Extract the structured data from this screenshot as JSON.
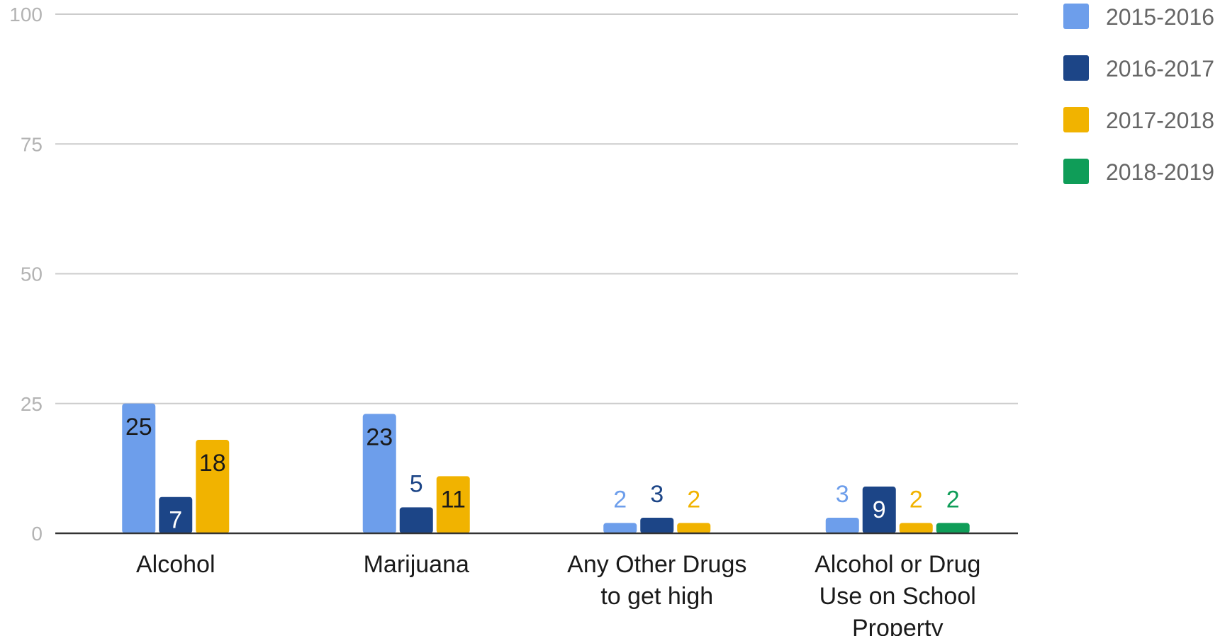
{
  "chart_data": {
    "type": "bar",
    "title": "",
    "xlabel": "",
    "ylabel": "",
    "ylim": [
      0,
      100
    ],
    "yticks": [
      0,
      25,
      50,
      75,
      100
    ],
    "grid": true,
    "legend_position": "right",
    "categories": [
      [
        "Alcohol"
      ],
      [
        "Marijuana"
      ],
      [
        "Any Other Drugs",
        "to get high"
      ],
      [
        "Alcohol or Drug",
        "Use on School",
        "Property"
      ]
    ],
    "series": [
      {
        "name": "2015-2016",
        "color": "#6d9eeb",
        "values": [
          25,
          23,
          2,
          3
        ]
      },
      {
        "name": "2016-2017",
        "color": "#1c4587",
        "values": [
          7,
          5,
          3,
          9
        ]
      },
      {
        "name": "2017-2018",
        "color": "#f1b300",
        "values": [
          18,
          11,
          2,
          2
        ]
      },
      {
        "name": "2018-2019",
        "color": "#0f9d58",
        "values": [
          null,
          null,
          null,
          2
        ]
      }
    ]
  }
}
